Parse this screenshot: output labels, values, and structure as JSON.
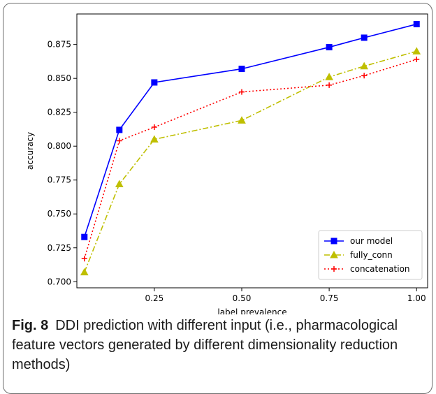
{
  "figure": {
    "label": "Fig. 8",
    "caption": "DDI prediction with different input (i.e., pharmacological feature vectors generated by different dimensionality reduction methods)"
  },
  "chart_data": {
    "type": "line",
    "xlabel": "label prevalence",
    "ylabel": "accuracy",
    "xlim": [
      0.0285,
      1.0315
    ],
    "ylim": [
      0.6955,
      0.8975
    ],
    "xticks": [
      "0.25",
      "0.50",
      "0.75",
      "1.00"
    ],
    "yticks": [
      "0.700",
      "0.725",
      "0.750",
      "0.775",
      "0.800",
      "0.825",
      "0.850",
      "0.875"
    ],
    "legend_position": "lower-right",
    "grid": false,
    "series": [
      {
        "name": "our model",
        "color": "#0000ff",
        "line": "solid",
        "marker": "square",
        "x": [
          0.05,
          0.15,
          0.25,
          0.5,
          0.75,
          0.85,
          1.0
        ],
        "y": [
          0.733,
          0.812,
          0.847,
          0.857,
          0.873,
          0.88,
          0.89
        ]
      },
      {
        "name": "fully_conn",
        "color": "#bfbf00",
        "line": "dashdot",
        "marker": "triangle",
        "x": [
          0.05,
          0.15,
          0.25,
          0.5,
          0.75,
          0.85,
          1.0
        ],
        "y": [
          0.707,
          0.772,
          0.805,
          0.819,
          0.851,
          0.859,
          0.87
        ]
      },
      {
        "name": "concatenation",
        "color": "#ff0000",
        "line": "dotted",
        "marker": "plus",
        "x": [
          0.05,
          0.15,
          0.25,
          0.5,
          0.75,
          0.85,
          1.0
        ],
        "y": [
          0.717,
          0.804,
          0.814,
          0.84,
          0.845,
          0.852,
          0.864
        ]
      }
    ]
  }
}
